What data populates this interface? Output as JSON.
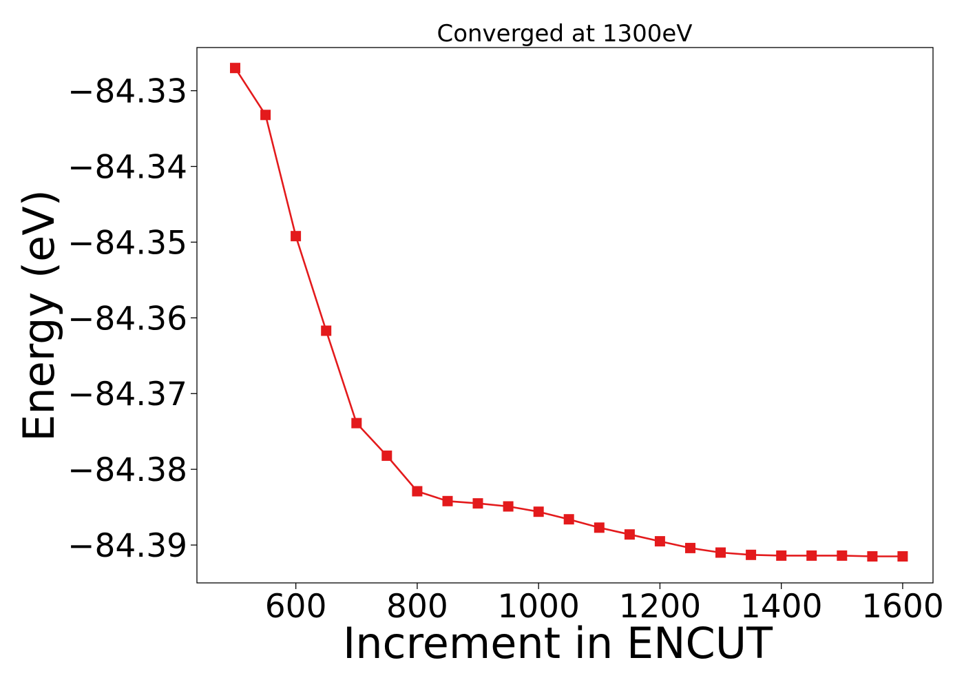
{
  "chart_data": {
    "type": "line",
    "title": "Converged at 1300eV",
    "xlabel": "Increment in ENCUT",
    "ylabel": "Energy (eV)",
    "xlim": [
      437,
      1650
    ],
    "ylim": [
      -84.395,
      -84.3243
    ],
    "xticks": [
      600,
      800,
      1000,
      1200,
      1400,
      1600
    ],
    "xtick_labels": [
      "600",
      "800",
      "1000",
      "1200",
      "1400",
      "1600"
    ],
    "yticks": [
      -84.33,
      -84.34,
      -84.35,
      -84.36,
      -84.37,
      -84.38,
      -84.39
    ],
    "ytick_labels": [
      "−84.33",
      "−84.34",
      "−84.35",
      "−84.36",
      "−84.37",
      "−84.38",
      "−84.39"
    ],
    "grid": false,
    "legend": "none",
    "series": [
      {
        "color": "#e31a1c",
        "marker": "square",
        "x": [
          500,
          550,
          600,
          650,
          700,
          750,
          800,
          850,
          900,
          950,
          1000,
          1050,
          1100,
          1150,
          1200,
          1250,
          1300,
          1350,
          1400,
          1450,
          1500,
          1550,
          1600
        ],
        "y": [
          -84.327,
          -84.3332,
          -84.3492,
          -84.3617,
          -84.3739,
          -84.3782,
          -84.3829,
          -84.3842,
          -84.3845,
          -84.3849,
          -84.3856,
          -84.3866,
          -84.3877,
          -84.3886,
          -84.3895,
          -84.3904,
          -84.391,
          -84.3913,
          -84.3914,
          -84.3914,
          -84.3914,
          -84.3915,
          -84.3915
        ]
      }
    ]
  }
}
